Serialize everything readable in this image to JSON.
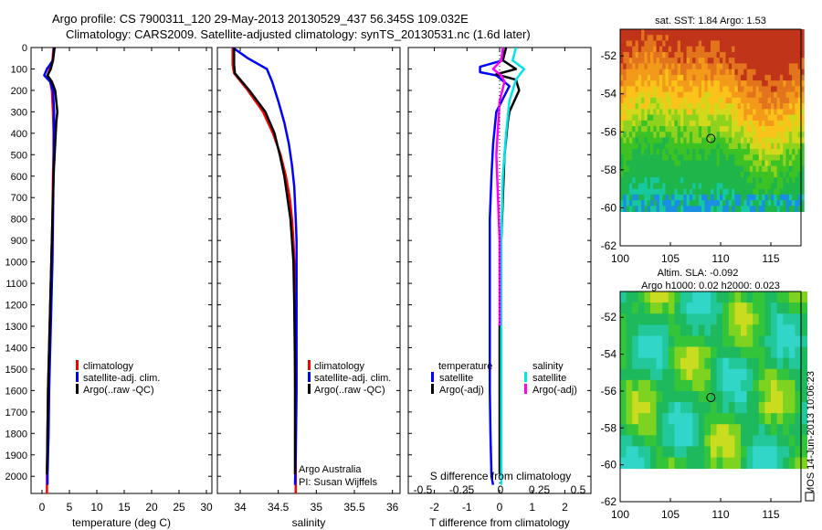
{
  "header": {
    "title_line1": "Argo profile: CS 7900311_120 29-May-2013 20130529_437 56.345S 109.032E",
    "title_line2": "Climatology: CARS2009. Satellite-adjusted climatology: synTS_20130531.nc (1.6d later)"
  },
  "colors": {
    "climatology": "#ff0000",
    "satellite": "#0000ff",
    "argo": "#000000",
    "sal_satellite": "#00e5e5",
    "sal_argo": "#ff00ff"
  },
  "chart_data": [
    {
      "id": "temperature",
      "type": "line",
      "xlabel": "temperature (deg C)",
      "xlim": [
        -2,
        31
      ],
      "xticks": [
        0,
        5,
        10,
        15,
        20,
        25,
        30
      ],
      "ylim": [
        0,
        2080
      ],
      "yticks": [
        0,
        100,
        200,
        300,
        400,
        500,
        600,
        700,
        800,
        900,
        1000,
        1100,
        1200,
        1300,
        1400,
        1500,
        1600,
        1700,
        1800,
        1900,
        2000
      ],
      "legend": [
        "climatology",
        "satellite-adj. clim.",
        "Argo(..raw -QC)"
      ],
      "series": [
        {
          "name": "climatology",
          "color": "#ff0000",
          "x": [
            2.1,
            1.9,
            1.4,
            1.0,
            1.5,
            1.8,
            2.0,
            2.1,
            2.1,
            2.0,
            1.95,
            1.9,
            1.8,
            1.7,
            1.6,
            1.5,
            1.4,
            1.3,
            1.2,
            1.1,
            1.0,
            0.9,
            0.9
          ],
          "depth": [
            0,
            60,
            100,
            130,
            160,
            200,
            300,
            400,
            500,
            600,
            700,
            800,
            900,
            1000,
            1100,
            1200,
            1300,
            1400,
            1500,
            1600,
            1800,
            2000,
            2080
          ]
        },
        {
          "name": "satellite-adj. clim.",
          "color": "#0000ff",
          "x": [
            2.2,
            2.0,
            0.9,
            0.4,
            1.5,
            2.0,
            2.2,
            2.2,
            2.15,
            2.1,
            2.05,
            2.0,
            1.95,
            1.9,
            1.8,
            1.7,
            1.6,
            1.5,
            1.4,
            1.3,
            1.2,
            1.0,
            1.0
          ],
          "depth": [
            0,
            60,
            100,
            130,
            160,
            200,
            300,
            400,
            500,
            600,
            700,
            800,
            900,
            1000,
            1100,
            1200,
            1300,
            1400,
            1500,
            1600,
            1800,
            2000,
            2040
          ]
        },
        {
          "name": "Argo(..raw -QC)",
          "color": "#000000",
          "x": [
            2.3,
            2.0,
            1.6,
            1.0,
            1.8,
            2.4,
            2.8,
            2.6,
            2.3,
            2.1,
            2.0,
            1.9,
            1.8,
            1.7,
            1.6,
            1.5,
            1.4,
            1.3,
            1.2,
            1.1,
            1.0,
            0.9
          ],
          "depth": [
            0,
            60,
            100,
            130,
            160,
            200,
            300,
            350,
            500,
            600,
            700,
            800,
            900,
            1000,
            1100,
            1200,
            1300,
            1400,
            1500,
            1600,
            1800,
            1990
          ]
        }
      ]
    },
    {
      "id": "salinity",
      "type": "line",
      "xlabel": "salinity",
      "xlim": [
        33.7,
        36.1
      ],
      "xticks": [
        34,
        34.5,
        35,
        35.5,
        36
      ],
      "xticklabels": [
        "34",
        "34.5",
        "35",
        "35.5",
        "36"
      ],
      "ylim": [
        0,
        2080
      ],
      "legend": [
        "climatology",
        "satellite-adj. clim.",
        "Argo(..raw -QC)"
      ],
      "annotation": [
        "Argo Australia",
        "PI: Susan Wijffels"
      ],
      "series": [
        {
          "name": "climatology",
          "color": "#ff0000",
          "x": [
            33.9,
            33.9,
            33.92,
            34.1,
            34.3,
            34.43,
            34.53,
            34.6,
            34.65,
            34.68,
            34.7,
            34.71,
            34.72,
            34.72,
            34.73,
            34.73,
            34.73
          ],
          "depth": [
            0,
            80,
            120,
            200,
            300,
            400,
            500,
            600,
            700,
            800,
            900,
            1000,
            1200,
            1500,
            1800,
            2000,
            2080
          ]
        },
        {
          "name": "satellite-adj. clim.",
          "color": "#0000ff",
          "x": [
            33.9,
            34.1,
            34.35,
            34.42,
            34.5,
            34.58,
            34.64,
            34.68,
            34.71,
            34.73,
            34.74,
            34.74,
            34.74,
            34.74,
            34.73,
            34.72
          ],
          "depth": [
            0,
            50,
            100,
            160,
            250,
            350,
            450,
            550,
            650,
            800,
            900,
            1000,
            1300,
            1600,
            1900,
            2040
          ]
        },
        {
          "name": "Argo(..raw -QC)",
          "color": "#000000",
          "x": [
            33.92,
            33.92,
            33.93,
            34.12,
            34.33,
            34.45,
            34.52,
            34.58,
            34.62,
            34.66,
            34.68,
            34.7,
            34.71,
            34.72,
            34.72,
            34.72
          ],
          "depth": [
            0,
            80,
            120,
            200,
            300,
            400,
            500,
            600,
            700,
            800,
            900,
            1000,
            1200,
            1500,
            1800,
            1990
          ]
        }
      ]
    },
    {
      "id": "difference",
      "type": "line",
      "xlabel": "T difference from climatology",
      "xlabel_top": "S difference from climatology",
      "xlim": [
        -2.8,
        2.8
      ],
      "xticks": [
        -2,
        -1,
        0,
        1,
        2
      ],
      "s_xticks": [
        -0.5,
        -0.25,
        0,
        0.25,
        0.5
      ],
      "s_xticklabels": [
        "-0.5",
        "-0.25",
        "0",
        "0.25",
        "0.5"
      ],
      "ylim": [
        0,
        2080
      ],
      "legend": {
        "temperature_title": "temperature",
        "salinity_title": "salinity",
        "t_satellite": "satellite",
        "t_argo": "Argo(-adj)",
        "s_satellite": "satellite",
        "s_argo": "Argo(-adj)"
      },
      "series": [
        {
          "name": "T satellite",
          "color": "#0000ff",
          "x": [
            0.1,
            0.1,
            -0.6,
            -0.6,
            -0.1,
            0.3,
            -0.1,
            -0.2,
            -0.25,
            -0.3,
            -0.3,
            -0.3,
            -0.3,
            -0.3,
            -0.28,
            -0.25,
            -0.2
          ],
          "depth": [
            0,
            60,
            90,
            115,
            130,
            180,
            300,
            450,
            600,
            800,
            1000,
            1200,
            1400,
            1600,
            1800,
            2000,
            2040
          ]
        },
        {
          "name": "T Argo",
          "color": "#000000",
          "x": [
            0.2,
            0.1,
            0.5,
            -0.1,
            0.5,
            0.6,
            0.3,
            0.25,
            0.15,
            0.1,
            0.05,
            0.05,
            0.0,
            0.0,
            0.0,
            0.0
          ],
          "depth": [
            0,
            60,
            100,
            125,
            150,
            200,
            300,
            350,
            500,
            700,
            900,
            1100,
            1300,
            1600,
            1800,
            1990
          ]
        },
        {
          "name": "S satellite",
          "color": "#00e5e5",
          "x": [
            0.5,
            0.4,
            0.75,
            0.5,
            0.3,
            0.2,
            0.1,
            0.05,
            0.05,
            0.05,
            0.05,
            0.05,
            0.05
          ],
          "depth": [
            0,
            60,
            100,
            150,
            250,
            400,
            600,
            900,
            1200,
            1500,
            1800,
            2000,
            2040
          ]
        },
        {
          "name": "S Argo",
          "color": "#ff00ff",
          "x": [
            0.1,
            0.05,
            -0.2,
            0.05,
            0.15,
            0.0,
            -0.1,
            -0.05,
            0.0,
            0.0,
            0.0
          ],
          "depth": [
            0,
            60,
            100,
            130,
            160,
            250,
            500,
            700,
            900,
            1100,
            1300
          ]
        },
        {
          "name": "zero line",
          "color": "#000000",
          "x": [
            0.0,
            0.0
          ],
          "depth": [
            0,
            2080
          ]
        }
      ]
    },
    {
      "id": "sst_map",
      "type": "heatmap",
      "title": "sat. SST: 1.84  Argo: 1.53",
      "xlim": [
        100,
        118
      ],
      "ylim": [
        -62,
        -50.6
      ],
      "xticks": [
        100,
        105,
        110,
        115
      ],
      "yticks": [
        -52,
        -54,
        -56,
        -58,
        -60,
        -62
      ],
      "data_extent_lat": [
        -60,
        -50.6
      ],
      "float_marker": {
        "lon": 109.03,
        "lat": -56.35
      }
    },
    {
      "id": "sla_map",
      "type": "heatmap",
      "title_line1": "Altim. SLA: -0.092",
      "title_line2": "Argo h1000: 0.02  h2000: 0.023",
      "xlim": [
        100,
        118
      ],
      "ylim": [
        -62,
        -50.6
      ],
      "xticks": [
        100,
        105,
        110,
        115
      ],
      "yticks": [
        -52,
        -54,
        -56,
        -58,
        -60,
        -62
      ],
      "data_extent_lat": [
        -60,
        -50.6
      ],
      "float_marker": {
        "lon": 109.03,
        "lat": -56.35
      }
    }
  ],
  "footer": {
    "imos_stamp": "IMOS 14-Jun-2013 10:06:23"
  }
}
